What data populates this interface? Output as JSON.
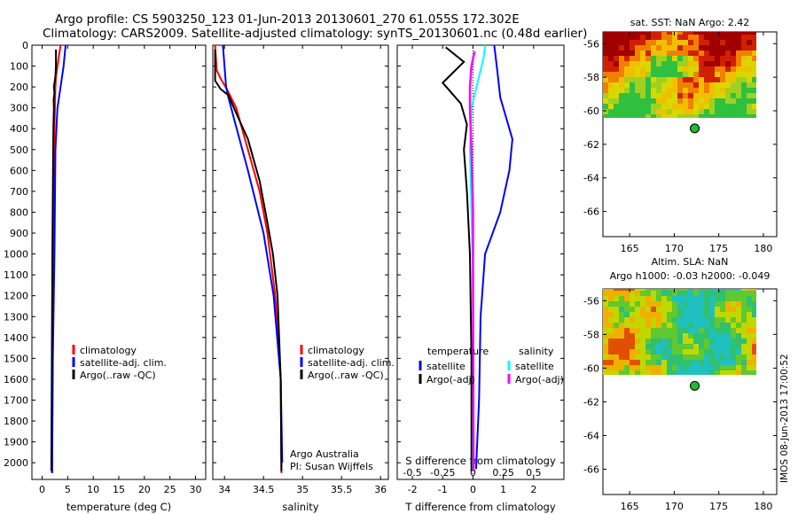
{
  "header": {
    "line1": "Argo profile: CS 5903250_123 01-Jun-2013 20130601_270 61.055S 172.302E",
    "line2": "Climatology: CARS2009. Satellite-adjusted climatology: synTS_20130601.nc (0.48d earlier)"
  },
  "footer_stamp": "IMOS 08-Jun-2013 17:00:52",
  "colors": {
    "climatology": "#ff0000",
    "satellite": "#0000ff",
    "argo": "#000000",
    "cyan": "#00ffff",
    "magenta": "#ff00ff"
  },
  "chart_data": [
    {
      "type": "line",
      "xlabel": "temperature (deg C)",
      "xticks": [
        0,
        5,
        10,
        15,
        20,
        25,
        30
      ],
      "xlim": [
        -2,
        32
      ],
      "ylim": [
        2080,
        0
      ],
      "yticks": [
        0,
        100,
        200,
        300,
        400,
        500,
        600,
        700,
        800,
        900,
        1000,
        1100,
        1200,
        1300,
        1400,
        1500,
        1600,
        1700,
        1800,
        1900,
        2000
      ],
      "legend": [
        "climatology",
        "satellite-adj. clim.",
        "Argo(..raw -QC)"
      ],
      "series": [
        {
          "name": "climatology",
          "color": "red",
          "x": [
            3.6,
            3.0,
            2.7,
            2.6,
            2.5,
            2.3,
            2.2,
            2.05,
            1.95
          ],
          "y": [
            0,
            100,
            150,
            200,
            300,
            500,
            1000,
            1500,
            2050
          ]
        },
        {
          "name": "satellite-adj. clim.",
          "color": "blue",
          "x": [
            4.6,
            4.2,
            3.6,
            3.0,
            2.6,
            2.4,
            2.1,
            1.95
          ],
          "y": [
            0,
            100,
            200,
            300,
            500,
            1000,
            1500,
            2050
          ]
        },
        {
          "name": "Argo(..raw -QC)",
          "color": "black",
          "x": [
            2.7,
            2.7,
            2.6,
            2.3,
            2.4,
            2.25,
            2.3,
            2.2,
            2.1,
            2.0,
            1.9,
            1.8
          ],
          "y": [
            20,
            100,
            150,
            200,
            230,
            260,
            300,
            400,
            700,
            1000,
            1500,
            2040
          ]
        }
      ]
    },
    {
      "type": "line",
      "xlabel": "salinity",
      "xticks": [
        34,
        34.5,
        35,
        35.5,
        36
      ],
      "xlim": [
        33.85,
        36.1
      ],
      "ylim": [
        2080,
        0
      ],
      "legend": [
        "climatology",
        "satellite-adj. clim.",
        "Argo(..raw -QC)"
      ],
      "annotation": [
        "Argo Australia",
        "PI: Susan Wijffels"
      ],
      "series": [
        {
          "name": "climatology",
          "color": "red",
          "x": [
            33.88,
            33.9,
            33.95,
            34.03,
            34.15,
            34.3,
            34.45,
            34.55,
            34.65,
            34.72,
            34.73
          ],
          "y": [
            0,
            120,
            160,
            210,
            300,
            500,
            700,
            900,
            1200,
            1600,
            2050
          ]
        },
        {
          "name": "satellite-adj. clim.",
          "color": "blue",
          "x": [
            33.98,
            34.0,
            34.02,
            34.05,
            34.12,
            34.3,
            34.5,
            34.63,
            34.72,
            34.74
          ],
          "y": [
            0,
            100,
            200,
            250,
            350,
            600,
            900,
            1200,
            1600,
            2000
          ]
        },
        {
          "name": "Argo(..raw -QC)",
          "color": "black",
          "x": [
            33.88,
            33.88,
            33.95,
            34.05,
            34.18,
            34.3,
            34.45,
            34.55,
            34.62,
            34.68,
            34.72,
            34.73
          ],
          "y": [
            20,
            170,
            210,
            240,
            350,
            450,
            650,
            850,
            1000,
            1200,
            1600,
            2040
          ]
        }
      ]
    },
    {
      "type": "line",
      "xlabel": "T difference from climatology",
      "xlabel2": "S difference from climatology",
      "xticks": [
        -2,
        -1,
        0,
        1,
        2
      ],
      "xticks2_labels": [
        "-0.5",
        "-0.25",
        "0",
        "0.25",
        "0.5"
      ],
      "xticks2_values": [
        -0.5,
        -0.25,
        0,
        0.25,
        0.5
      ],
      "xlim": [
        -2.5,
        3.0
      ],
      "legend_left_title": "temperature",
      "legend_right_title": "salinity",
      "legend": [
        "satellite",
        "Argo(-adj)",
        "satellite",
        "Argo(-adj)"
      ],
      "series": [
        {
          "name": "T satellite",
          "color": "blue",
          "x": [
            0.7,
            0.8,
            0.9,
            1.3,
            1.2,
            0.9,
            0.4,
            0.25,
            0.2,
            0.1
          ],
          "y": [
            0,
            120,
            250,
            450,
            600,
            800,
            1000,
            1300,
            1700,
            2030
          ]
        },
        {
          "name": "T Argo(-adj)",
          "color": "black",
          "x": [
            -0.9,
            -0.3,
            -1.0,
            -0.4,
            -0.2,
            -0.3,
            -0.2,
            -0.1,
            -0.05,
            -0.05
          ],
          "y": [
            10,
            80,
            180,
            280,
            380,
            500,
            700,
            1000,
            1500,
            2040
          ]
        },
        {
          "name": "S satellite",
          "color": "cyan",
          "x": [
            0.4,
            0.35,
            0.2,
            -0.05,
            -0.1,
            -0.05,
            0.0,
            0.0,
            0.0
          ],
          "y": [
            0,
            60,
            150,
            300,
            500,
            800,
            1100,
            1500,
            2040
          ]
        },
        {
          "name": "S Argo(-adj)",
          "color": "magenta",
          "x": [
            0.05,
            -0.05,
            -0.1,
            -0.1,
            -0.05,
            0.0,
            0.0,
            0.02
          ],
          "y": [
            30,
            100,
            200,
            300,
            500,
            800,
            1200,
            2040
          ]
        }
      ]
    },
    {
      "type": "heatmap",
      "title": "sat. SST: NaN Argo: 2.42",
      "xticks": [
        165,
        170,
        175,
        180
      ],
      "yticks": [
        -56,
        -58,
        -60,
        -62,
        -64,
        -66
      ],
      "xlim": [
        162,
        181.5
      ],
      "ylim": [
        -67.5,
        -55.3
      ],
      "point": [
        172.3,
        -61.05
      ]
    },
    {
      "type": "heatmap",
      "title": "Altim. SLA: NaN",
      "subtitle": "Argo h1000: -0.03 h2000: -0.049",
      "xticks": [
        165,
        170,
        175,
        180
      ],
      "yticks": [
        -56,
        -58,
        -60,
        -62,
        -64,
        -66
      ],
      "xlim": [
        162,
        181.5
      ],
      "ylim": [
        -67.5,
        -55.3
      ],
      "point": [
        172.3,
        -61.05
      ]
    }
  ]
}
